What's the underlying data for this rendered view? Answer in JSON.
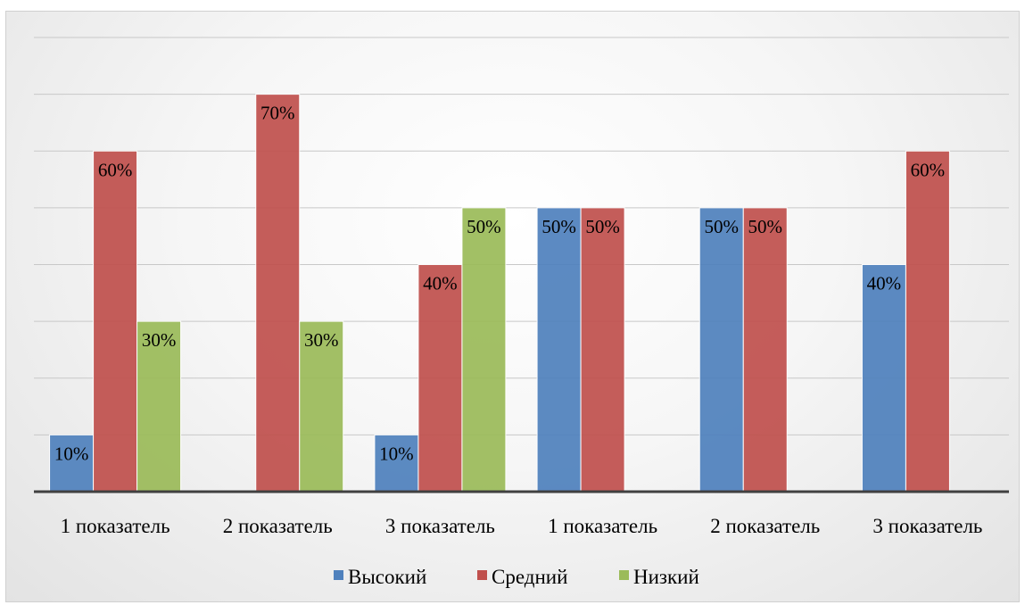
{
  "chart_data": {
    "type": "bar",
    "title": "",
    "xlabel": "",
    "ylabel": "",
    "ylim": [
      0,
      80
    ],
    "grid": true,
    "y_tick_labels_visible": false,
    "legend_position": "bottom",
    "categories": [
      "1 показатель",
      "2 показатель",
      "3 показатель",
      "1 показатель",
      "2 показатель",
      "3 показатель"
    ],
    "series": [
      {
        "name": "Высокий",
        "color": "#4F81BD",
        "values": [
          10,
          null,
          10,
          50,
          50,
          40
        ],
        "labels": [
          "10%",
          "",
          "10%",
          "50%",
          "50%",
          "40%"
        ]
      },
      {
        "name": "Средний",
        "color": "#C0504D",
        "values": [
          60,
          70,
          40,
          50,
          50,
          60
        ],
        "labels": [
          "60%",
          "70%",
          "40%",
          "50%",
          "50%",
          "60%"
        ]
      },
      {
        "name": "Низкий",
        "color": "#9BBB59",
        "values": [
          30,
          30,
          50,
          null,
          null,
          null
        ],
        "labels": [
          "30%",
          "30%",
          "50%",
          "",
          "",
          ""
        ]
      }
    ]
  }
}
